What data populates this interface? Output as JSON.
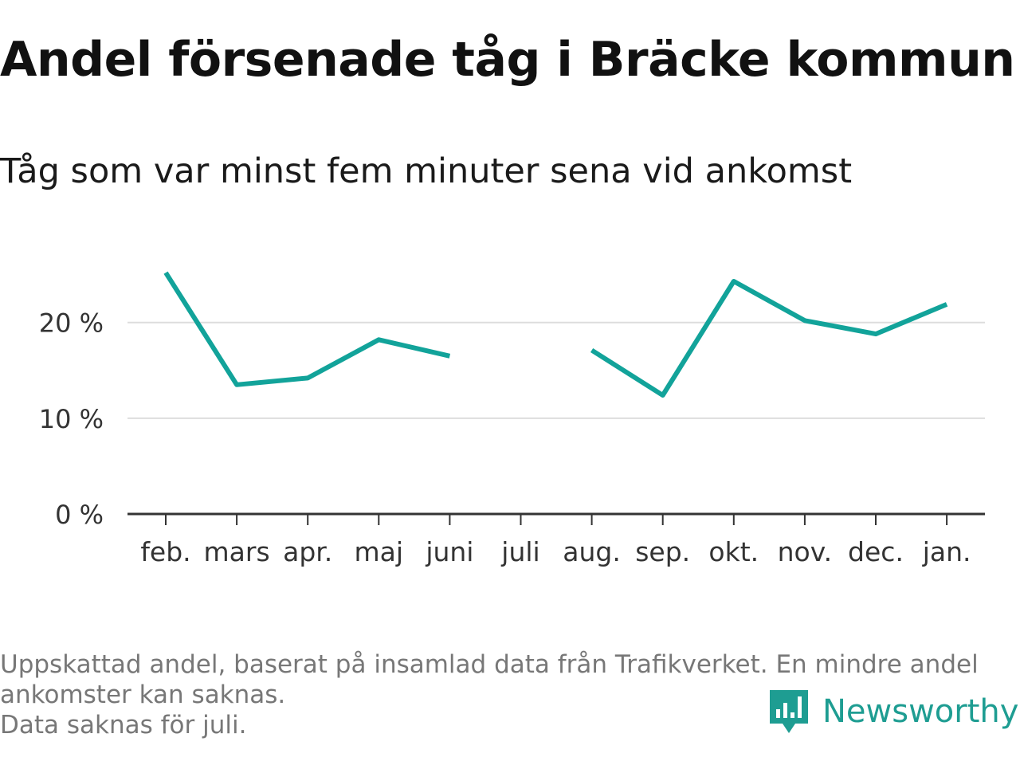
{
  "colors": {
    "line": "#12a39a",
    "grid": "#dddddd",
    "axis": "#333333",
    "brand": "#1e9d92"
  },
  "chart_data": {
    "type": "line",
    "title": "Andel försenade tåg i Bräcke kommun",
    "subtitle": "Tåg som var minst fem minuter sena vid ankomst",
    "categories": [
      "feb.",
      "mars",
      "apr.",
      "maj",
      "juni",
      "juli",
      "aug.",
      "sep.",
      "okt.",
      "nov.",
      "dec.",
      "jan."
    ],
    "series": [
      {
        "values": [
          25.2,
          13.5,
          14.2,
          18.2,
          16.5,
          null,
          17.1,
          12.4,
          24.3,
          20.2,
          18.8,
          21.9
        ]
      }
    ],
    "yticks": [
      {
        "value": 0,
        "label": "0 %"
      },
      {
        "value": 10,
        "label": "10 %"
      },
      {
        "value": 20,
        "label": "20 %"
      }
    ],
    "ylim": [
      0,
      26.8
    ],
    "grid": true,
    "legend": "none"
  },
  "footnote": {
    "line1": "Uppskattad andel, baserat på insamlad data från Trafikverket. En mindre andel ankomster kan saknas.",
    "line2": "Data saknas för juli."
  },
  "brand": {
    "name": "Newsworthy",
    "icon": "newsworthy-logo-icon"
  }
}
